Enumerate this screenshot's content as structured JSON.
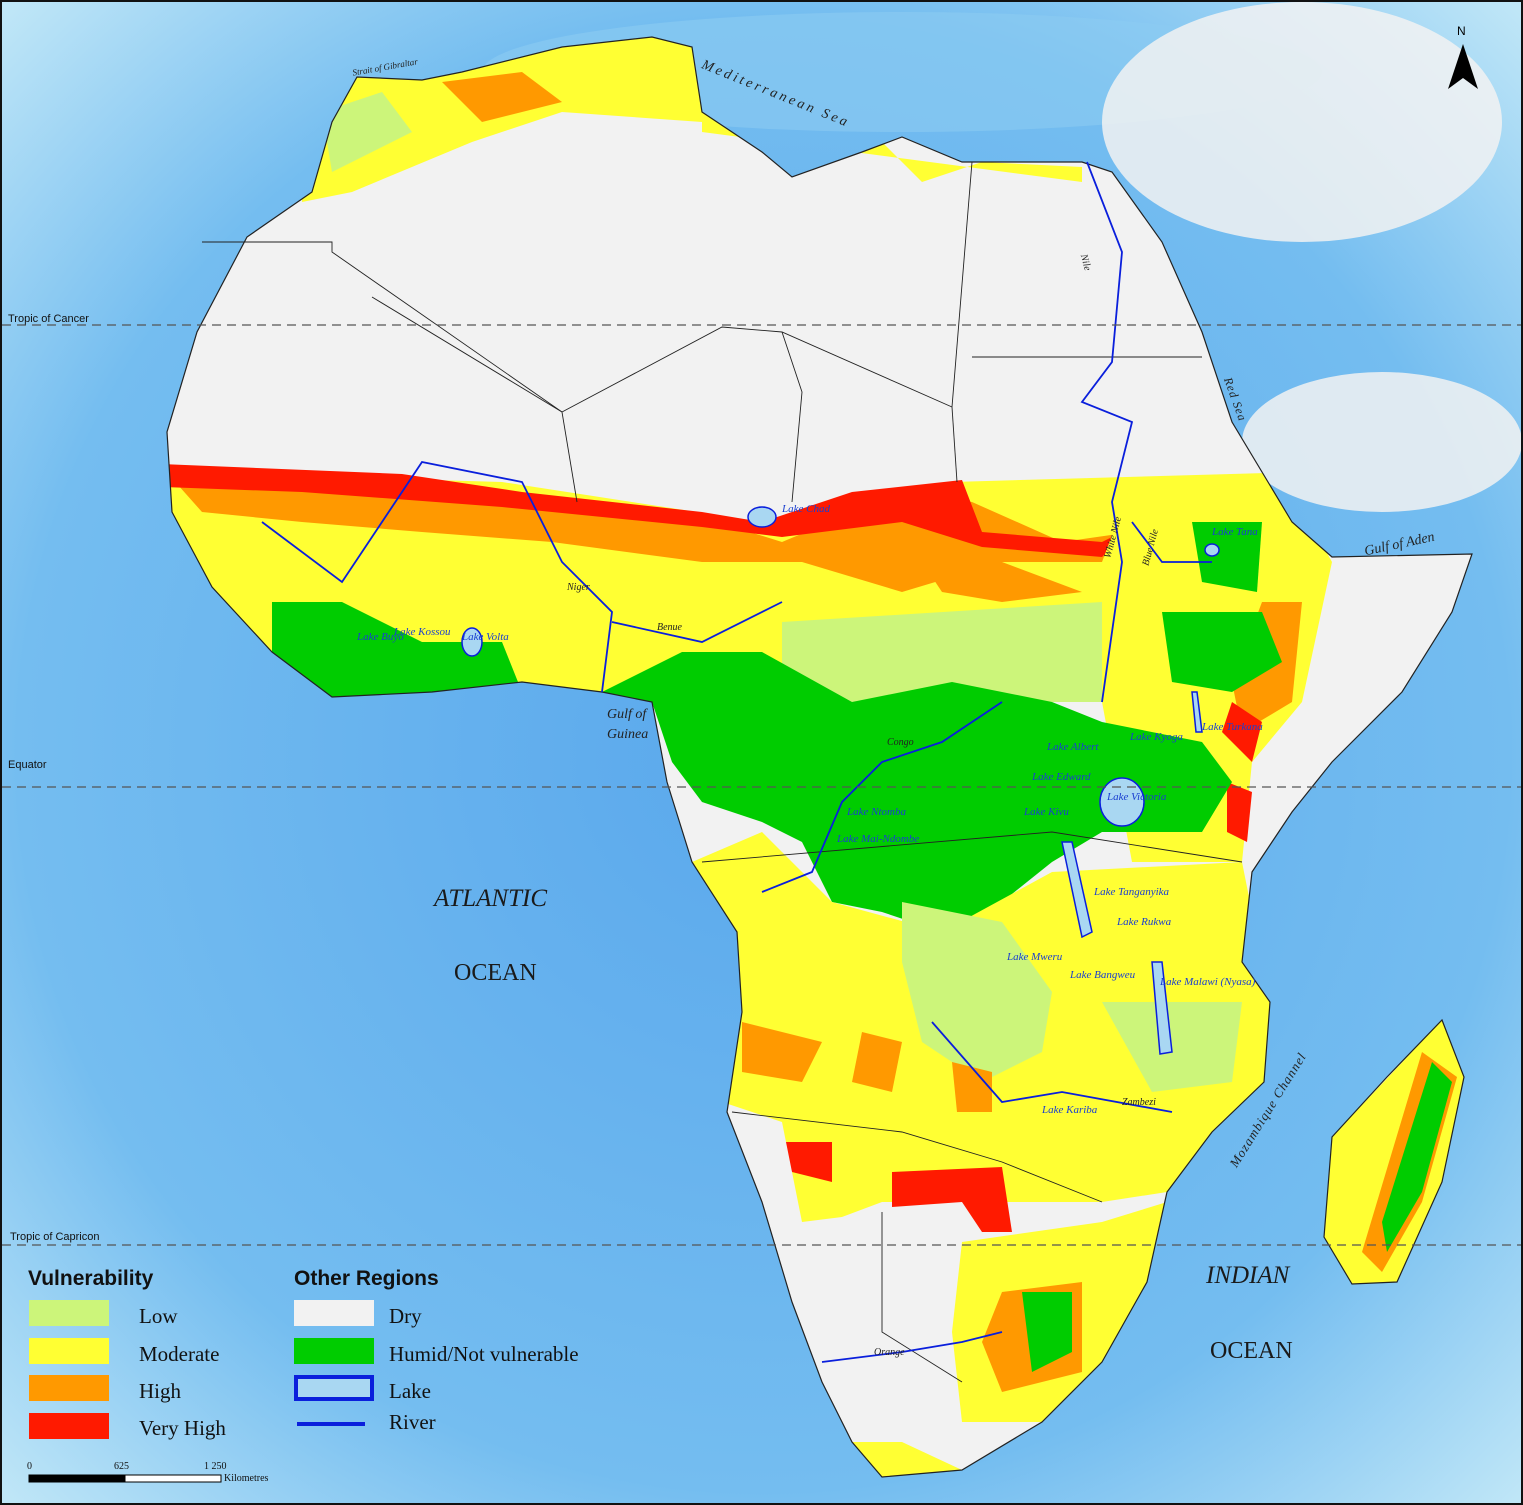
{
  "colors": {
    "ocean": "#6ab4ee",
    "dry": "#f2f2f2",
    "low": "#ccf57a",
    "moderate": "#ffff33",
    "high": "#ff9900",
    "very_high": "#ff1a00",
    "humid": "#00cc00",
    "lake_fill": "#a9d7f2",
    "lake_border": "#0a1fdc",
    "river": "#0a1fdc"
  },
  "north_arrow": {
    "label": "N",
    "icon": "north-arrow-icon"
  },
  "parallels": {
    "tropic_cancer": "Tropic of Cancer",
    "equator": "Equator",
    "tropic_capricorn": "Tropic of Capricon"
  },
  "water_labels": {
    "strait": "Strait of Gibraltar",
    "mediterranean": "Mediterranean Sea",
    "red_sea": "Red Sea",
    "gulf_aden": "Gulf of Aden",
    "gulf_guinea_1": "Gulf of",
    "gulf_guinea_2": "Guinea",
    "atlantic_1": "ATLANTIC",
    "atlantic_2": "OCEAN",
    "indian_1": "INDIAN",
    "indian_2": "OCEAN",
    "mozambique": "Mozambique Channel"
  },
  "lakes": {
    "chad": "Lake Chad",
    "tana": "Lake Tana",
    "turkana": "Lake Turkana",
    "kyoga": "Lake Kyoga",
    "albert": "Lake Albert",
    "edward": "Lake Edward",
    "kivu": "Lake Kivu",
    "victoria": "Lake Victoria",
    "tanganyika": "Lake Tanganyika",
    "rukwa": "Lake Rukwa",
    "mweru": "Lake Mweru",
    "bangweulu": "Lake Bangweu",
    "malawi": "Lake Malawi (Nyasa)",
    "kariba": "Lake Kariba",
    "buyo": "Lake Buyo",
    "kossou": "Lake Kossou",
    "volta": "Lake Volta",
    "ntomba": "Lake Ntomba",
    "mai_ndombe": "Lake Mai-Ndombe"
  },
  "rivers": {
    "nile": "Nile",
    "white_nile": "White Nile",
    "blue_nile": "Blue Nile",
    "niger": "Niger",
    "benue": "Benue",
    "congo": "Congo",
    "zambezi": "Zambezi",
    "orange": "Orange"
  },
  "legend": {
    "vulnerability_title": "Vulnerability",
    "vulnerability": [
      {
        "label": "Low",
        "color": "#ccf57a"
      },
      {
        "label": "Moderate",
        "color": "#ffff33"
      },
      {
        "label": "High",
        "color": "#ff9900"
      },
      {
        "label": "Very High",
        "color": "#ff1a00"
      }
    ],
    "other_title": "Other Regions",
    "other": [
      {
        "label": "Dry",
        "color": "#f2f2f2"
      },
      {
        "label": "Humid/Not vulnerable",
        "color": "#00cc00"
      },
      {
        "label": "Lake",
        "color": "#a9d7f2"
      },
      {
        "label": "River",
        "color": "#0a1fdc"
      }
    ]
  },
  "scale_bar": {
    "ticks": [
      "0",
      "625",
      "1 250"
    ],
    "unit": "Kilometres"
  }
}
